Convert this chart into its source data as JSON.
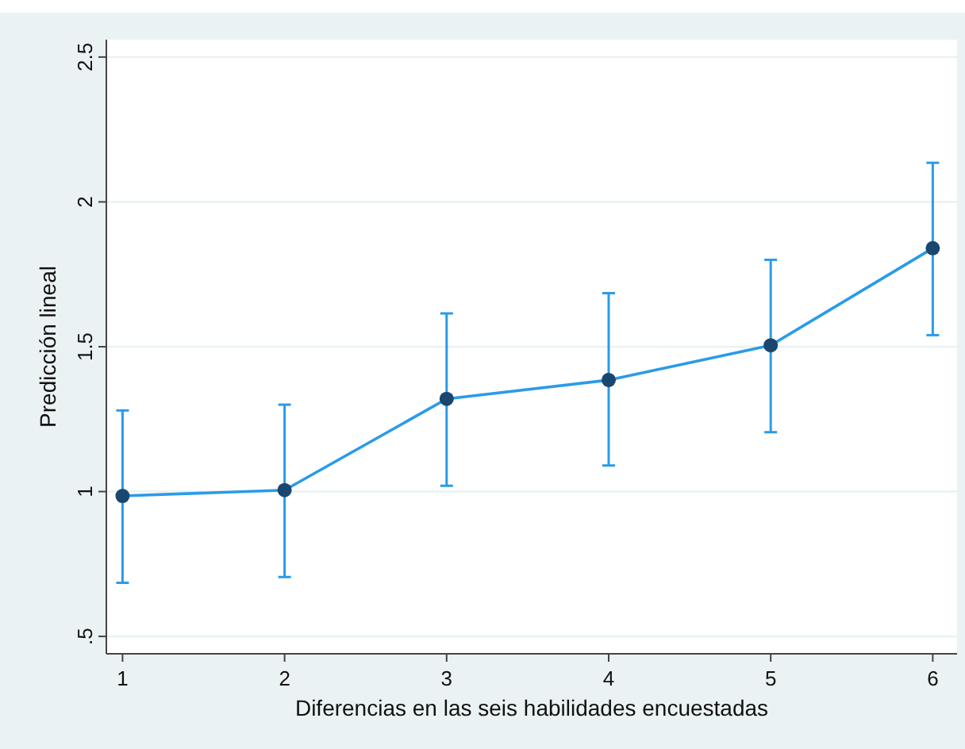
{
  "chart_data": {
    "type": "line",
    "xlabel": "Diferencias en las seis habilidades encuestadas",
    "ylabel": "Predicción lineal",
    "x": [
      1,
      2,
      3,
      4,
      5,
      6
    ],
    "series": [
      {
        "type": "line",
        "color": "#2a9be8",
        "marker": "none",
        "values": [
          0.985,
          1.005,
          1.32,
          1.385,
          1.505,
          1.84
        ],
        "errors": [
          [
            0.685,
            1.28
          ],
          [
            0.705,
            1.3
          ],
          [
            1.02,
            1.615
          ],
          [
            1.09,
            1.685
          ],
          [
            1.205,
            1.8
          ],
          [
            1.54,
            2.135
          ]
        ]
      },
      {
        "type": "scatter",
        "color": "#1a476f",
        "marker": "circle",
        "values": [
          0.985,
          1.005,
          1.32,
          1.385,
          1.505,
          1.84
        ]
      }
    ],
    "xlim": [
      0.9,
      6.15
    ],
    "ylim": [
      0.44,
      2.56
    ],
    "xticks": [
      1,
      2,
      3,
      4,
      5,
      6
    ],
    "yticks": [
      {
        "value": 0.5,
        "label": ".5"
      },
      1,
      1.5,
      2,
      2.5
    ],
    "grid": "y"
  }
}
